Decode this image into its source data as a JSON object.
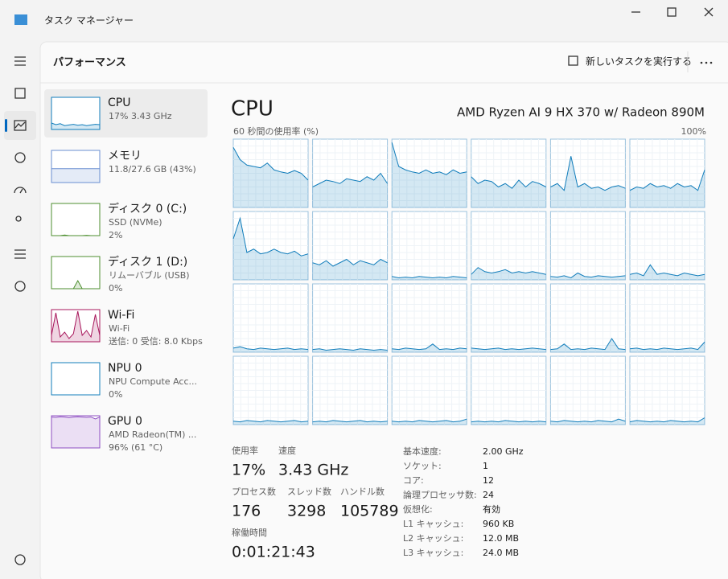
{
  "window": {
    "title": "タスク マネージャー"
  },
  "header": {
    "title": "パフォーマンス",
    "run_task": "新しいタスクを実行する"
  },
  "sidebar": [
    {
      "name": "CPU",
      "detail": "17%  3.43 GHz",
      "color": "#117dbb",
      "graph": [
        20,
        15,
        18,
        12,
        14,
        16,
        13,
        15,
        12,
        14,
        16,
        15
      ]
    },
    {
      "name": "メモリ",
      "detail": "11.8/27.6 GB (43%)",
      "color": "#6a8fd1",
      "graph": [
        43,
        43,
        43,
        43,
        43,
        43,
        43,
        43,
        43,
        43,
        43,
        43
      ]
    },
    {
      "name": "ディスク 0 (C:)",
      "detail": "SSD (NVMe)",
      "detail2": "2%",
      "color": "#4d8f2f",
      "graph": [
        0,
        0,
        0,
        2,
        0,
        0,
        0,
        0,
        1,
        0,
        0,
        0
      ]
    },
    {
      "name": "ディスク 1 (D:)",
      "detail": "リムーバブル (USB)",
      "detail2": "0%",
      "color": "#4d8f2f",
      "graph": [
        0,
        0,
        0,
        0,
        0,
        0,
        25,
        0,
        0,
        0,
        0,
        0
      ]
    },
    {
      "name": "Wi-Fi",
      "detail": "Wi-Fi",
      "detail2": "送信: 0 受信: 8.0 Kbps",
      "color": "#a8175c",
      "graph": [
        20,
        90,
        15,
        30,
        10,
        25,
        95,
        20,
        35,
        15,
        85,
        20
      ]
    },
    {
      "name": "NPU 0",
      "detail": "NPU Compute Acc...",
      "detail2": "0%",
      "color": "#117dbb",
      "graph": [
        0,
        0,
        0,
        0,
        0,
        0,
        0,
        0,
        0,
        0,
        0,
        0
      ]
    },
    {
      "name": "GPU 0",
      "detail": "AMD Radeon(TM) ...",
      "detail2": "96% (61 °C)",
      "color": "#8e4fc2",
      "graph": [
        96,
        95,
        97,
        96,
        94,
        96,
        97,
        96,
        95,
        96,
        90,
        96
      ]
    }
  ],
  "main": {
    "title": "CPU",
    "model": "AMD Ryzen AI 9 HX 370 w/ Radeon 890M",
    "graph_label": "60 秒間の使用率 (%)",
    "graph_max": "100%",
    "color": "#117dbb",
    "cores": [
      [
        88,
        70,
        62,
        60,
        58,
        65,
        55,
        52,
        50,
        54,
        50,
        40
      ],
      [
        30,
        35,
        40,
        38,
        35,
        42,
        40,
        38,
        45,
        40,
        50,
        35
      ],
      [
        95,
        60,
        55,
        52,
        50,
        55,
        50,
        52,
        48,
        55,
        50,
        52
      ],
      [
        45,
        35,
        40,
        38,
        30,
        35,
        28,
        40,
        30,
        38,
        35,
        30
      ],
      [
        30,
        35,
        25,
        75,
        30,
        35,
        28,
        30,
        25,
        30,
        32,
        28
      ],
      [
        25,
        30,
        28,
        35,
        30,
        32,
        28,
        35,
        30,
        32,
        25,
        55
      ],
      [
        60,
        90,
        40,
        45,
        38,
        40,
        45,
        40,
        38,
        42,
        35,
        38
      ],
      [
        25,
        22,
        28,
        20,
        25,
        30,
        22,
        28,
        25,
        22,
        30,
        25
      ],
      [
        5,
        3,
        4,
        3,
        5,
        4,
        3,
        4,
        3,
        5,
        4,
        3
      ],
      [
        8,
        18,
        12,
        10,
        12,
        15,
        10,
        12,
        10,
        12,
        10,
        8
      ],
      [
        5,
        4,
        6,
        3,
        10,
        5,
        4,
        6,
        5,
        4,
        5,
        6
      ],
      [
        8,
        10,
        6,
        22,
        8,
        10,
        8,
        6,
        10,
        8,
        6,
        8
      ],
      [
        6,
        8,
        5,
        4,
        6,
        5,
        4,
        5,
        6,
        4,
        5,
        4
      ],
      [
        4,
        5,
        3,
        4,
        5,
        4,
        3,
        5,
        4,
        3,
        4,
        3
      ],
      [
        5,
        4,
        6,
        5,
        4,
        5,
        12,
        4,
        5,
        4,
        6,
        5
      ],
      [
        6,
        5,
        4,
        5,
        6,
        4,
        5,
        4,
        5,
        6,
        5,
        4
      ],
      [
        4,
        5,
        12,
        4,
        5,
        4,
        6,
        5,
        4,
        20,
        5,
        4
      ],
      [
        5,
        6,
        4,
        5,
        4,
        6,
        5,
        4,
        5,
        6,
        4,
        15
      ],
      [
        5,
        4,
        6,
        5,
        4,
        6,
        5,
        4,
        5,
        6,
        4,
        5
      ],
      [
        4,
        5,
        4,
        6,
        5,
        4,
        5,
        6,
        4,
        5,
        4,
        5
      ],
      [
        5,
        4,
        5,
        4,
        6,
        5,
        4,
        5,
        6,
        4,
        5,
        8
      ],
      [
        4,
        5,
        4,
        5,
        4,
        6,
        5,
        4,
        5,
        4,
        5,
        4
      ],
      [
        5,
        4,
        6,
        5,
        4,
        5,
        4,
        6,
        5,
        4,
        8,
        5
      ],
      [
        4,
        6,
        5,
        4,
        5,
        4,
        6,
        5,
        4,
        5,
        4,
        10
      ]
    ]
  },
  "stats": [
    {
      "label": "使用率",
      "value": "17%"
    },
    {
      "label": "速度",
      "value": "3.43 GHz"
    },
    {
      "label": "プロセス数",
      "value": "176"
    },
    {
      "label": "スレッド数",
      "value": "3298"
    },
    {
      "label": "ハンドル数",
      "value": "105789"
    },
    {
      "label": "稼働時間",
      "value": "0:01:21:43"
    }
  ],
  "specs": [
    [
      "基本速度:",
      "2.00 GHz"
    ],
    [
      "ソケット:",
      "1"
    ],
    [
      "コア:",
      "12"
    ],
    [
      "論理プロセッサ数:",
      "24"
    ],
    [
      "仮想化:",
      "有効"
    ],
    [
      "L1 キャッシュ:",
      "960 KB"
    ],
    [
      "L2 キャッシュ:",
      "12.0 MB"
    ],
    [
      "L3 キャッシュ:",
      "24.0 MB"
    ]
  ]
}
